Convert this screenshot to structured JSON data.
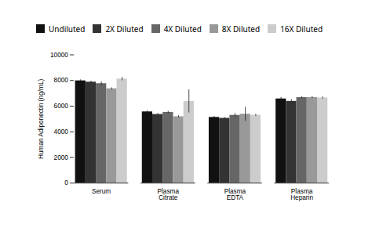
{
  "chart_data": {
    "type": "bar",
    "categories": [
      "Serum",
      "Plasma\nCitrate",
      "Plasma\nEDTA",
      "Plasma\nHeparin"
    ],
    "series": [
      {
        "name": "Undiluted",
        "color": "#111111",
        "values": [
          7980,
          5560,
          5130,
          6570
        ],
        "errors": [
          80,
          90,
          80,
          120
        ]
      },
      {
        "name": "2X Diluted",
        "color": "#333333",
        "values": [
          7880,
          5360,
          5060,
          6380
        ],
        "errors": [
          80,
          80,
          80,
          130
        ]
      },
      {
        "name": "4X Diluted",
        "color": "#666666",
        "values": [
          7760,
          5520,
          5290,
          6680
        ],
        "errors": [
          150,
          90,
          150,
          80
        ]
      },
      {
        "name": "8X Diluted",
        "color": "#999999",
        "values": [
          7360,
          5180,
          5380,
          6680
        ],
        "errors": [
          80,
          80,
          550,
          80
        ]
      },
      {
        "name": "16X Diluted",
        "color": "#cccccc",
        "values": [
          8120,
          6380,
          5300,
          6650
        ],
        "errors": [
          130,
          900,
          80,
          80
        ]
      }
    ],
    "ylabel": "Human Adiponectin (ng/mL)",
    "ylim": [
      0,
      10000
    ],
    "yticks": [
      0,
      2000,
      4000,
      6000,
      8000,
      10000
    ],
    "grid": false,
    "legend": "top"
  }
}
